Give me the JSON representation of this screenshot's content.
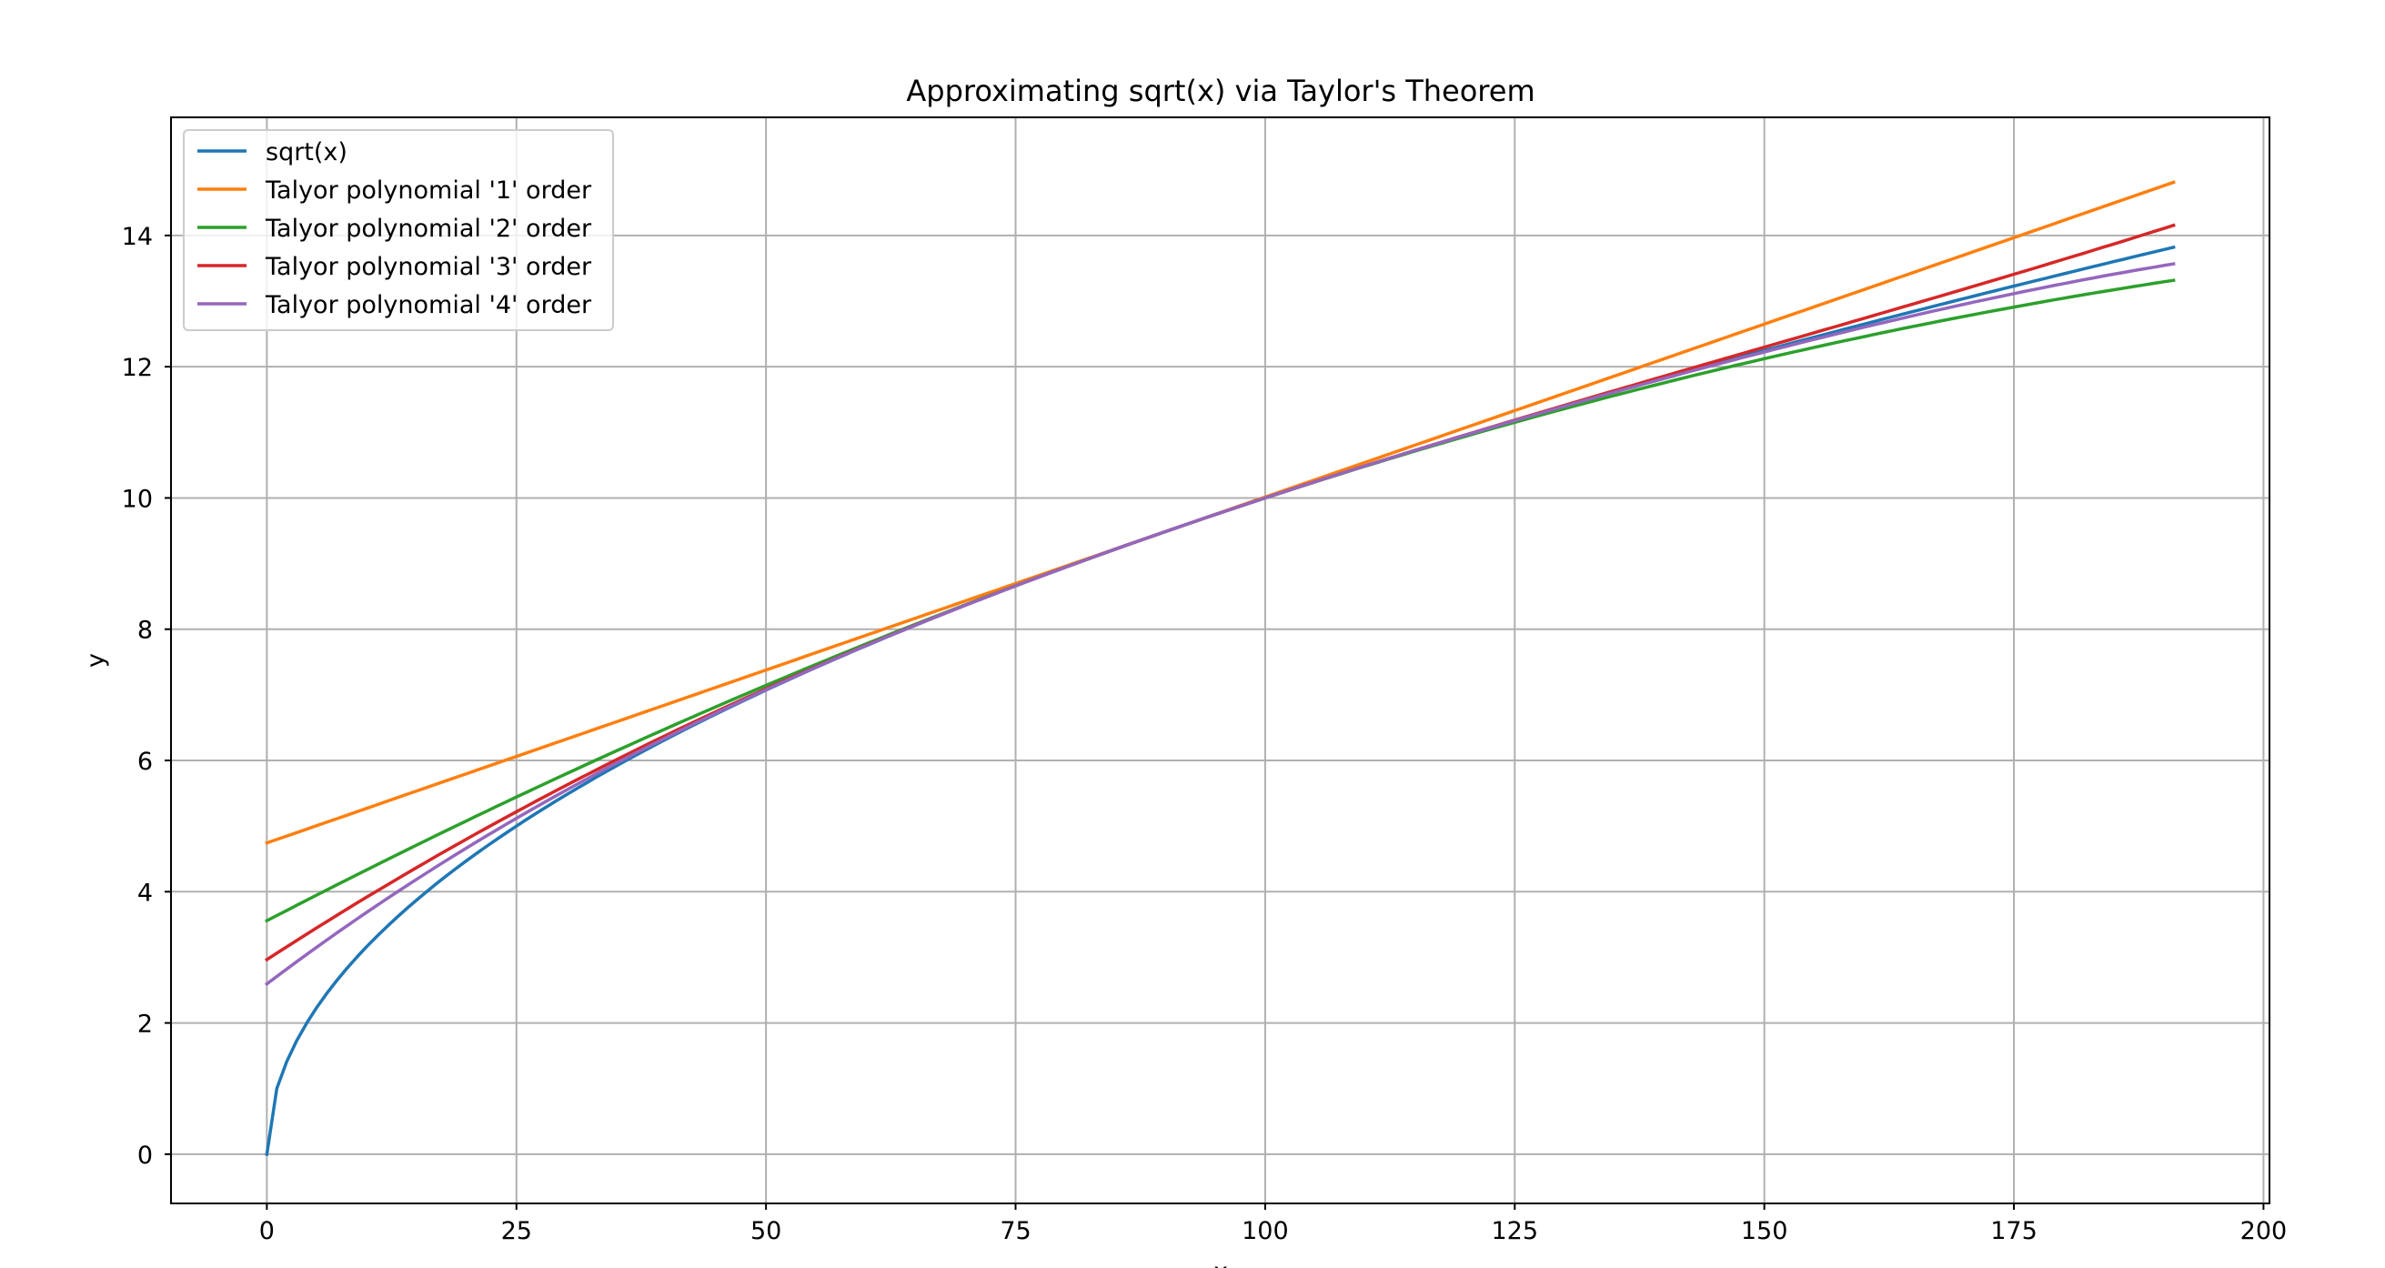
{
  "chart_data": {
    "type": "line",
    "title": "Approximating sqrt(x) via Taylor's Theorem",
    "xlabel": "x",
    "ylabel": "y",
    "xlim": [
      -9.6,
      200.6
    ],
    "ylim": [
      -0.75,
      15.8
    ],
    "xticks": [
      0,
      25,
      50,
      75,
      100,
      125,
      150,
      175,
      200
    ],
    "yticks": [
      0,
      2,
      4,
      6,
      8,
      10,
      12,
      14
    ],
    "grid": true,
    "legend_position": "upper-left",
    "x_sample": {
      "start": 0,
      "end": 191,
      "step": 1
    },
    "series": [
      {
        "name": "sqrt(x)",
        "color": "#1f77b4",
        "function": "sqrt(x)"
      },
      {
        "name": "Talyor polynomial '1' order",
        "color": "#ff7f0e",
        "order": 1,
        "expansion_point": 90,
        "start_value": 4.5,
        "end_value": 15.1
      },
      {
        "name": "Talyor polynomial '2' order",
        "color": "#2ca02c",
        "order": 2,
        "expansion_point": 90,
        "start_value": 3.38,
        "end_value": 13.05
      },
      {
        "name": "Talyor polynomial '3' order",
        "color": "#d62728",
        "order": 3,
        "expansion_point": 90,
        "start_value": 2.81,
        "end_value": 14.45
      },
      {
        "name": "Talyor polynomial '4' order",
        "color": "#9467bd",
        "order": 4,
        "expansion_point": 90,
        "start_value": 2.45,
        "end_value": 13.25
      }
    ]
  }
}
